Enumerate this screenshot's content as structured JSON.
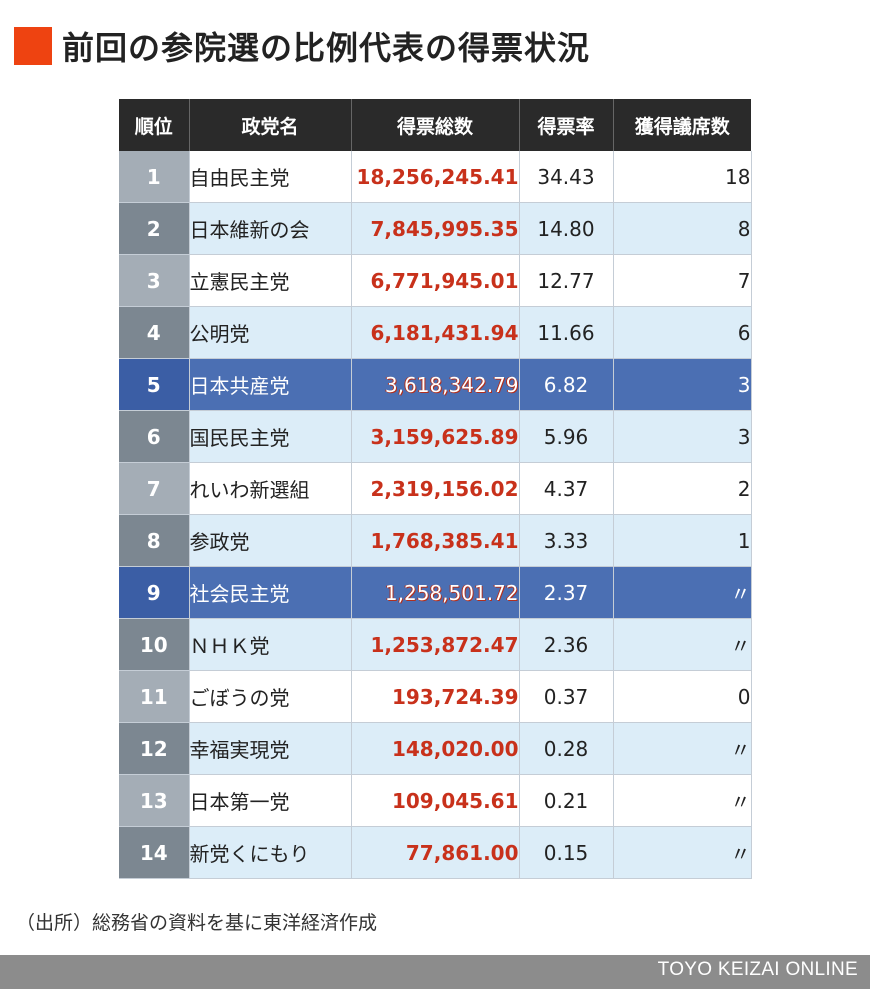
{
  "title": "前回の参院選の比例代表の得票状況",
  "headers": [
    "順位",
    "政党名",
    "得票総数",
    "得票率",
    "獲得議席数"
  ],
  "rows": [
    {
      "rank": "1",
      "party": "自由民主党",
      "votes": "18,256,245.41",
      "rate": "34.43",
      "seats": "18",
      "highlight": false
    },
    {
      "rank": "2",
      "party": "日本維新の会",
      "votes": "7,845,995.35",
      "rate": "14.80",
      "seats": "8",
      "highlight": false
    },
    {
      "rank": "3",
      "party": "立憲民主党",
      "votes": "6,771,945.01",
      "rate": "12.77",
      "seats": "7",
      "highlight": false
    },
    {
      "rank": "4",
      "party": "公明党",
      "votes": "6,181,431.94",
      "rate": "11.66",
      "seats": "6",
      "highlight": false
    },
    {
      "rank": "5",
      "party": "日本共産党",
      "votes": "3,618,342.79",
      "rate": "6.82",
      "seats": "3",
      "highlight": true
    },
    {
      "rank": "6",
      "party": "国民民主党",
      "votes": "3,159,625.89",
      "rate": "5.96",
      "seats": "3",
      "highlight": false
    },
    {
      "rank": "7",
      "party": "れいわ新選組",
      "votes": "2,319,156.02",
      "rate": "4.37",
      "seats": "2",
      "highlight": false
    },
    {
      "rank": "8",
      "party": "参政党",
      "votes": "1,768,385.41",
      "rate": "3.33",
      "seats": "1",
      "highlight": false
    },
    {
      "rank": "9",
      "party": "社会民主党",
      "votes": "1,258,501.72",
      "rate": "2.37",
      "seats": "〃",
      "highlight": true
    },
    {
      "rank": "10",
      "party": "ＮＨＫ党",
      "votes": "1,253,872.47",
      "rate": "2.36",
      "seats": "〃",
      "highlight": false
    },
    {
      "rank": "11",
      "party": "ごぼうの党",
      "votes": "193,724.39",
      "rate": "0.37",
      "seats": "0",
      "highlight": false
    },
    {
      "rank": "12",
      "party": "幸福実現党",
      "votes": "148,020.00",
      "rate": "0.28",
      "seats": "〃",
      "highlight": false
    },
    {
      "rank": "13",
      "party": "日本第一党",
      "votes": "109,045.61",
      "rate": "0.21",
      "seats": "〃",
      "highlight": false
    },
    {
      "rank": "14",
      "party": "新党くにもり",
      "votes": "77,861.00",
      "rate": "0.15",
      "seats": "〃",
      "highlight": false
    }
  ],
  "source": "（出所）総務省の資料を基に東洋経済作成",
  "brand": "TOYO KEIZAI ONLINE",
  "colors": {
    "accent": "#ee4311",
    "header_bg": "#2a2a2a",
    "highlight_row": "#4b6fb3",
    "vote_text": "#c8311b",
    "even_row": "#dcedf8"
  }
}
